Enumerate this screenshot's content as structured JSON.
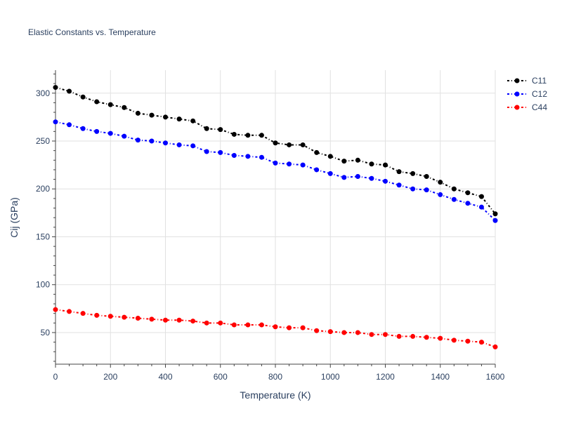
{
  "chart_data": {
    "type": "line",
    "title": "Elastic Constants vs. Temperature",
    "xlabel": "Temperature (K)",
    "ylabel": "Cij (GPa)",
    "xlim": [
      0,
      1600
    ],
    "ylim": [
      17,
      324
    ],
    "xticks": [
      0,
      200,
      400,
      600,
      800,
      1000,
      1200,
      1400,
      1600
    ],
    "yticks": [
      50,
      100,
      150,
      200,
      250,
      300
    ],
    "grid": true,
    "legend_position": "top-right",
    "line_style": "dash-dot with markers",
    "x": [
      0,
      50,
      100,
      150,
      200,
      250,
      300,
      350,
      400,
      450,
      500,
      550,
      600,
      650,
      700,
      750,
      800,
      850,
      900,
      950,
      1000,
      1050,
      1100,
      1150,
      1200,
      1250,
      1300,
      1350,
      1400,
      1450,
      1500,
      1550,
      1600
    ],
    "series": [
      {
        "name": "C11",
        "color": "#000000",
        "values": [
          306,
          302,
          296,
          291,
          288,
          285,
          279,
          277,
          275,
          273,
          271,
          263,
          262,
          257,
          256,
          256,
          248,
          246,
          246,
          238,
          234,
          229,
          230,
          226,
          225,
          218,
          216,
          213,
          207,
          200,
          196,
          192,
          174
        ]
      },
      {
        "name": "C12",
        "color": "#0000ff",
        "values": [
          270,
          267,
          263,
          260,
          258,
          255,
          251,
          250,
          248,
          246,
          245,
          239,
          238,
          235,
          234,
          233,
          227,
          226,
          225,
          220,
          216,
          212,
          213,
          211,
          208,
          204,
          200,
          199,
          194,
          189,
          185,
          181,
          167
        ]
      },
      {
        "name": "C44",
        "color": "#ff0000",
        "values": [
          74,
          72,
          70,
          68,
          67,
          66,
          65,
          64,
          63,
          63,
          62,
          60,
          60,
          58,
          58,
          58,
          56,
          55,
          55,
          52,
          51,
          50,
          50,
          48,
          48,
          46,
          46,
          45,
          44,
          42,
          41,
          40,
          35
        ]
      }
    ]
  }
}
